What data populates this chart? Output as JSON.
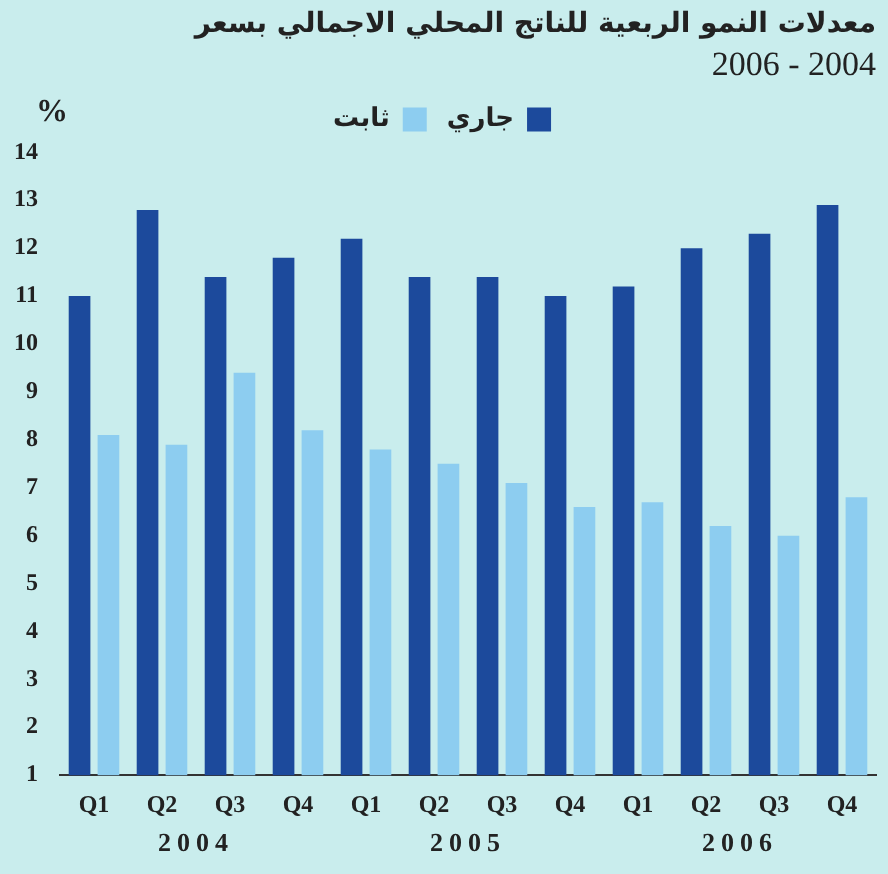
{
  "chart_data": {
    "type": "bar",
    "title": "معدلات النمو الربعية للناتج المحلي الاجمالي بسعر",
    "subtitle": "2006 - 2004",
    "ylabel": "%",
    "categories": [
      "Q1",
      "Q2",
      "Q3",
      "Q4",
      "Q1",
      "Q2",
      "Q3",
      "Q4",
      "Q1",
      "Q2",
      "Q3",
      "Q4"
    ],
    "series": [
      {
        "name": "جاري",
        "color": "#1c4a9c",
        "values": [
          11.0,
          12.8,
          11.4,
          11.8,
          12.2,
          11.4,
          11.4,
          11.0,
          11.2,
          12.0,
          12.3,
          12.9
        ]
      },
      {
        "name": "ثابت",
        "color": "#8dcdf0",
        "values": [
          8.1,
          7.9,
          9.4,
          8.2,
          7.8,
          7.5,
          7.1,
          6.6,
          6.7,
          6.2,
          6.0,
          6.8
        ]
      }
    ],
    "ylim": [
      1,
      14
    ],
    "yticks": [
      1,
      2,
      3,
      4,
      5,
      6,
      7,
      8,
      9,
      10,
      11,
      12,
      13,
      14
    ],
    "legend": "top",
    "annotations": [
      "2004",
      "2005",
      "2006"
    ]
  }
}
